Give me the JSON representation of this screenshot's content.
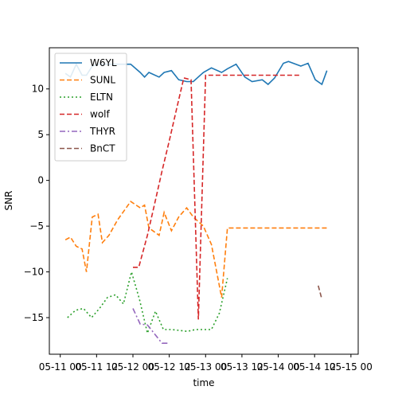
{
  "chart_data": {
    "type": "line",
    "title": "",
    "xlabel": "time",
    "ylabel": "SNR",
    "xlim": [
      -0.15,
      4.1
    ],
    "ylim": [
      -19,
      14.5
    ],
    "grid": false,
    "legend_position": "top-left",
    "x_ticks": [
      {
        "value": 0.0,
        "label": "05-11 00"
      },
      {
        "value": 0.5,
        "label": "05-11 12"
      },
      {
        "value": 1.0,
        "label": "05-12 00"
      },
      {
        "value": 1.5,
        "label": "05-12 12"
      },
      {
        "value": 2.0,
        "label": "05-13 00"
      },
      {
        "value": 2.5,
        "label": "05-13 12"
      },
      {
        "value": 3.0,
        "label": "05-14 00"
      },
      {
        "value": 3.5,
        "label": "05-14 12"
      },
      {
        "value": 4.0,
        "label": "05-15 00"
      }
    ],
    "y_ticks": [
      -15,
      -10,
      -5,
      0,
      5,
      10
    ],
    "series": [
      {
        "name": "W6YL",
        "color": "#1f77b4",
        "dash": "solid",
        "x": [
          0.07,
          0.14,
          0.22,
          0.3,
          0.36,
          0.44,
          0.52,
          0.58,
          0.67,
          0.79,
          0.97,
          1.1,
          1.16,
          1.22,
          1.36,
          1.43,
          1.53,
          1.63,
          1.74,
          1.83,
          1.97,
          2.08,
          2.22,
          2.3,
          2.42,
          2.54,
          2.64,
          2.78,
          2.86,
          2.95,
          3.07,
          3.14,
          3.31,
          3.41,
          3.51,
          3.6,
          3.67
        ],
        "y": [
          11.7,
          11.3,
          12.7,
          11.5,
          11.5,
          12.5,
          12.7,
          12.7,
          12.7,
          12.7,
          12.7,
          11.8,
          11.3,
          11.8,
          11.3,
          11.8,
          12.0,
          11.0,
          10.8,
          10.8,
          11.8,
          12.3,
          11.8,
          12.2,
          12.7,
          11.3,
          10.8,
          11.0,
          10.5,
          11.2,
          12.8,
          13.0,
          12.5,
          12.8,
          11.0,
          10.5,
          12.0
        ]
      },
      {
        "name": "SUNL",
        "color": "#ff7f0e",
        "dash": "dashed",
        "x": [
          0.07,
          0.14,
          0.22,
          0.3,
          0.36,
          0.44,
          0.52,
          0.58,
          0.67,
          0.79,
          0.97,
          1.1,
          1.16,
          1.22,
          1.36,
          1.43,
          1.53,
          1.63,
          1.74,
          1.83,
          1.97,
          2.08,
          2.22,
          2.3,
          2.42,
          2.54,
          2.64,
          2.78,
          2.86,
          2.95,
          3.07,
          3.14,
          3.31,
          3.41,
          3.51,
          3.6,
          3.67
        ],
        "y": [
          -6.5,
          -6.2,
          -7.2,
          -7.5,
          -10.0,
          -4.0,
          -3.7,
          -6.8,
          -6.0,
          -4.3,
          -2.3,
          -3.0,
          -2.7,
          -5.2,
          -6.0,
          -3.5,
          -5.5,
          -4.0,
          -3.0,
          -4.0,
          -5.0,
          -7.0,
          -12.8,
          -5.2,
          -5.2,
          -5.2,
          -5.2,
          -5.2,
          -5.2,
          -5.2,
          -5.2,
          -5.2,
          -5.2,
          -5.2,
          -5.2,
          -5.2,
          -5.2
        ]
      },
      {
        "name": "ELTN",
        "color": "#2ca02c",
        "dash": "dotted",
        "x": [
          0.1,
          0.21,
          0.32,
          0.43,
          0.54,
          0.65,
          0.76,
          0.87,
          0.98,
          1.09,
          1.2,
          1.31,
          1.42,
          1.53,
          1.64,
          1.75,
          1.86,
          1.97,
          2.08,
          2.19,
          2.3
        ],
        "y": [
          -15.0,
          -14.2,
          -14.0,
          -15.0,
          -14.0,
          -12.8,
          -12.5,
          -13.5,
          -10.0,
          -13.0,
          -16.7,
          -14.3,
          -16.3,
          -16.3,
          -16.4,
          -16.5,
          -16.3,
          -16.3,
          -16.3,
          -14.5,
          -10.7
        ]
      },
      {
        "name": "wolf",
        "color": "#d62728",
        "dash": "dashed",
        "x": [
          1.0,
          1.08,
          1.2,
          1.3,
          1.4,
          1.5,
          1.6,
          1.7,
          1.8,
          1.9,
          2.0,
          2.1,
          2.2,
          2.3,
          2.4,
          2.52,
          2.6,
          2.7,
          2.8,
          2.9,
          3.0,
          3.1,
          3.2,
          3.3
        ],
        "y": [
          -9.5,
          -9.5,
          -6.0,
          -2.5,
          1.0,
          4.3,
          7.8,
          11.2,
          11.0,
          -15.2,
          11.5,
          11.5,
          11.5,
          11.5,
          11.5,
          11.5,
          11.5,
          11.5,
          11.5,
          11.5,
          11.5,
          11.5,
          11.5,
          11.5
        ]
      },
      {
        "name": "THYR",
        "color": "#9467bd",
        "dash": "dashdot",
        "x": [
          1.0,
          1.1,
          1.2,
          1.3,
          1.4,
          1.5
        ],
        "y": [
          -14.0,
          -15.7,
          -15.8,
          -16.8,
          -17.8,
          -17.8
        ]
      },
      {
        "name": "BnCT",
        "color": "#8c564b",
        "dash": "dashed",
        "x": [
          3.55,
          3.6
        ],
        "y": [
          -11.5,
          -13.0
        ]
      }
    ]
  }
}
